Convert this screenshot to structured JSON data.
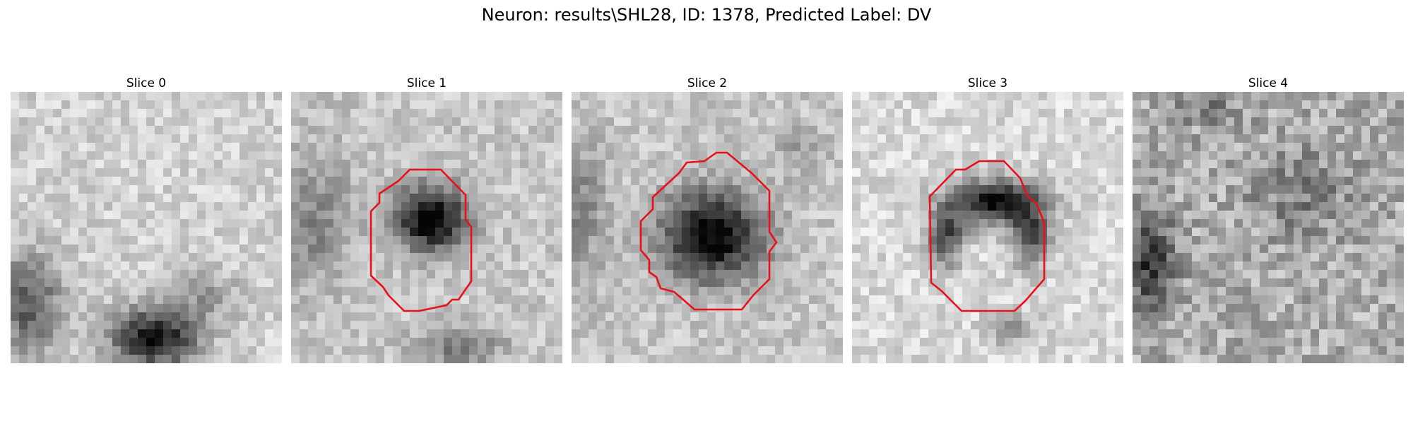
{
  "figure": {
    "title": "Neuron: results\\SHL28, ID: 1378, Predicted Label: DV"
  },
  "contour_color": "#e8111a",
  "panels": [
    {
      "title": "Slice 0",
      "has_contour": false
    },
    {
      "title": "Slice 1",
      "has_contour": true
    },
    {
      "title": "Slice 2",
      "has_contour": true
    },
    {
      "title": "Slice 3",
      "has_contour": true
    },
    {
      "title": "Slice 4",
      "has_contour": false
    }
  ]
}
